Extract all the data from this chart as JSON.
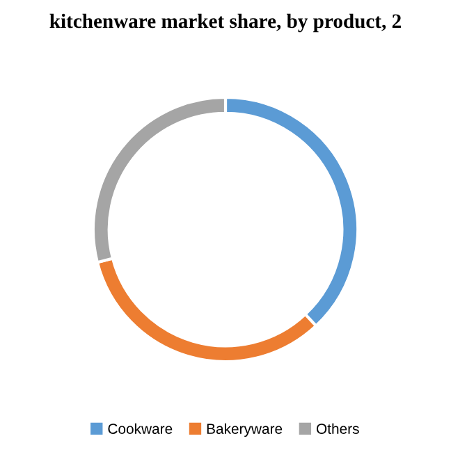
{
  "chart_data": {
    "type": "donut",
    "title": "kitchenware market share, by product, 2",
    "categories": [
      "Cookware",
      "Bakeryware",
      "Others"
    ],
    "values": [
      38,
      33,
      29
    ],
    "colors": [
      "#5b9bd5",
      "#ed7d31",
      "#a5a5a5"
    ],
    "legend": "bottom"
  }
}
